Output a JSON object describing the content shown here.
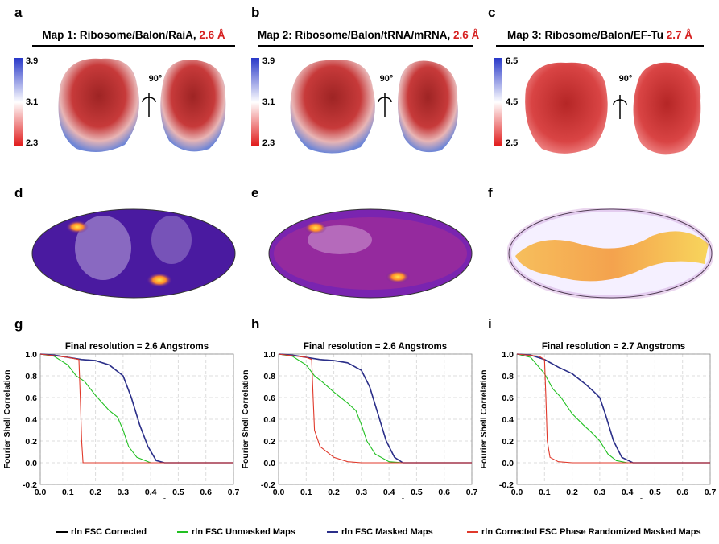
{
  "panel_labels": [
    "a",
    "b",
    "c",
    "d",
    "e",
    "f",
    "g",
    "h",
    "i"
  ],
  "maps": [
    {
      "title": "Map 1: Ribosome/Balon/RaiA, ",
      "res": "2.6 Å",
      "cbar": [
        "3.9",
        "3.1",
        "2.3"
      ],
      "rotation": "90°"
    },
    {
      "title": "Map 2: Ribosome/Balon/tRNA/mRNA, ",
      "res": "2.6 Å",
      "cbar": [
        "3.9",
        "3.1",
        "2.3"
      ],
      "rotation": "90°"
    },
    {
      "title": "Map 3: Ribosome/Balon/EF-Tu ",
      "res": "2.7 Å",
      "cbar": [
        "6.5",
        "4.5",
        "2.5"
      ],
      "rotation": "90°"
    }
  ],
  "colors": {
    "corrected": "#000000",
    "unmasked": "#22c022",
    "masked": "#2b2f8a",
    "phase": "#e0392b",
    "accent": "#d62020"
  },
  "chart_data": [
    {
      "type": "line",
      "title": "Final resolution = 2.6 Angstroms",
      "xlabel": "Resolution (1/Å)",
      "ylabel": "Fourier Shell Correlation",
      "xlim": [
        0,
        0.7
      ],
      "ylim": [
        -0.2,
        1.0
      ],
      "xticks": [
        "0.0",
        "0.1",
        "0.2",
        "0.3",
        "0.4",
        "0.5",
        "0.6",
        "0.7"
      ],
      "yticks": [
        "-0.2",
        "0.0",
        "0.2",
        "0.4",
        "0.6",
        "0.8",
        "1.0"
      ],
      "series": [
        {
          "name": "rln FSC Corrected",
          "x": [
            0,
            0.05,
            0.1,
            0.15,
            0.2,
            0.25,
            0.3,
            0.33,
            0.36,
            0.39,
            0.42,
            0.45,
            0.5,
            0.6,
            0.7
          ],
          "y": [
            1,
            0.99,
            0.97,
            0.95,
            0.94,
            0.9,
            0.8,
            0.6,
            0.35,
            0.15,
            0.02,
            0,
            0,
            0,
            0
          ]
        },
        {
          "name": "rln FSC Unmasked Maps",
          "x": [
            0,
            0.05,
            0.1,
            0.13,
            0.16,
            0.2,
            0.25,
            0.28,
            0.3,
            0.32,
            0.35,
            0.4,
            0.45,
            0.5,
            0.6,
            0.7
          ],
          "y": [
            1,
            0.98,
            0.9,
            0.8,
            0.75,
            0.62,
            0.48,
            0.42,
            0.3,
            0.15,
            0.05,
            0,
            0,
            0,
            0,
            0
          ]
        },
        {
          "name": "rln FSC Masked Maps",
          "x": [
            0,
            0.05,
            0.1,
            0.15,
            0.2,
            0.25,
            0.3,
            0.33,
            0.36,
            0.39,
            0.42,
            0.45,
            0.5,
            0.6,
            0.7
          ],
          "y": [
            1,
            0.99,
            0.97,
            0.95,
            0.94,
            0.9,
            0.8,
            0.6,
            0.35,
            0.15,
            0.02,
            0,
            0,
            0,
            0
          ]
        },
        {
          "name": "rln Corrected FSC Phase Randomized Masked Maps",
          "x": [
            0,
            0.1,
            0.14,
            0.145,
            0.15,
            0.155,
            0.2,
            0.3,
            0.4,
            0.5,
            0.6,
            0.7
          ],
          "y": [
            1,
            0.97,
            0.95,
            0.6,
            0.2,
            0.0,
            0,
            0,
            0,
            0,
            0,
            0
          ]
        }
      ]
    },
    {
      "type": "line",
      "title": "Final resolution = 2.6 Angstroms",
      "xlabel": "Resolution (1/Å)",
      "ylabel": "Fourier Shell Correlation",
      "xlim": [
        0,
        0.7
      ],
      "ylim": [
        -0.2,
        1.0
      ],
      "xticks": [
        "0.0",
        "0.1",
        "0.2",
        "0.3",
        "0.4",
        "0.5",
        "0.6",
        "0.7"
      ],
      "yticks": [
        "-0.2",
        "0.0",
        "0.2",
        "0.4",
        "0.6",
        "0.8",
        "1.0"
      ],
      "series": [
        {
          "name": "rln FSC Corrected",
          "x": [
            0,
            0.05,
            0.1,
            0.15,
            0.2,
            0.25,
            0.3,
            0.33,
            0.36,
            0.39,
            0.42,
            0.45,
            0.5,
            0.6,
            0.7
          ],
          "y": [
            1,
            0.99,
            0.97,
            0.95,
            0.94,
            0.92,
            0.85,
            0.7,
            0.45,
            0.2,
            0.05,
            0,
            0,
            0,
            0
          ]
        },
        {
          "name": "rln FSC Unmasked Maps",
          "x": [
            0,
            0.05,
            0.1,
            0.13,
            0.16,
            0.2,
            0.25,
            0.28,
            0.3,
            0.32,
            0.35,
            0.4,
            0.45,
            0.5,
            0.6,
            0.7
          ],
          "y": [
            1,
            0.98,
            0.9,
            0.8,
            0.74,
            0.65,
            0.55,
            0.48,
            0.35,
            0.2,
            0.08,
            0.01,
            0,
            0,
            0,
            0
          ]
        },
        {
          "name": "rln FSC Masked Maps",
          "x": [
            0,
            0.05,
            0.1,
            0.15,
            0.2,
            0.25,
            0.3,
            0.33,
            0.36,
            0.39,
            0.42,
            0.45,
            0.5,
            0.6,
            0.7
          ],
          "y": [
            1,
            0.99,
            0.97,
            0.95,
            0.94,
            0.92,
            0.85,
            0.7,
            0.45,
            0.2,
            0.05,
            0,
            0,
            0,
            0
          ]
        },
        {
          "name": "rln Corrected FSC Phase Randomized Masked Maps",
          "x": [
            0,
            0.1,
            0.12,
            0.125,
            0.13,
            0.15,
            0.2,
            0.25,
            0.3,
            0.4,
            0.5,
            0.6,
            0.7
          ],
          "y": [
            1,
            0.97,
            0.95,
            0.6,
            0.3,
            0.15,
            0.05,
            0.01,
            0,
            0,
            0,
            0,
            0
          ]
        }
      ]
    },
    {
      "type": "line",
      "title": "Final resolution = 2.7 Angstroms",
      "xlabel": "Resolution (1/Å)",
      "ylabel": "Fourier Shell Correlation",
      "xlim": [
        0,
        0.7
      ],
      "ylim": [
        -0.2,
        1.0
      ],
      "xticks": [
        "0.0",
        "0.1",
        "0.2",
        "0.3",
        "0.4",
        "0.5",
        "0.6",
        "0.7"
      ],
      "yticks": [
        "-0.2",
        "0.0",
        "0.2",
        "0.4",
        "0.6",
        "0.8",
        "1.0"
      ],
      "series": [
        {
          "name": "rln FSC Corrected",
          "x": [
            0,
            0.05,
            0.1,
            0.15,
            0.2,
            0.25,
            0.28,
            0.3,
            0.32,
            0.35,
            0.38,
            0.42,
            0.45,
            0.5,
            0.6,
            0.7
          ],
          "y": [
            1,
            0.99,
            0.95,
            0.88,
            0.82,
            0.72,
            0.65,
            0.6,
            0.45,
            0.2,
            0.05,
            0,
            0,
            0,
            0,
            0
          ]
        },
        {
          "name": "rln FSC Unmasked Maps",
          "x": [
            0,
            0.05,
            0.1,
            0.13,
            0.16,
            0.2,
            0.24,
            0.27,
            0.3,
            0.33,
            0.36,
            0.4,
            0.45,
            0.5,
            0.6,
            0.7
          ],
          "y": [
            1,
            0.97,
            0.82,
            0.68,
            0.6,
            0.45,
            0.35,
            0.28,
            0.2,
            0.08,
            0.02,
            0,
            0,
            0,
            0,
            0
          ]
        },
        {
          "name": "rln FSC Masked Maps",
          "x": [
            0,
            0.05,
            0.1,
            0.15,
            0.2,
            0.25,
            0.28,
            0.3,
            0.32,
            0.35,
            0.38,
            0.42,
            0.45,
            0.5,
            0.6,
            0.7
          ],
          "y": [
            1,
            0.99,
            0.95,
            0.88,
            0.82,
            0.72,
            0.65,
            0.6,
            0.45,
            0.2,
            0.05,
            0,
            0,
            0,
            0,
            0
          ]
        },
        {
          "name": "rln Corrected FSC Phase Randomized Masked Maps",
          "x": [
            0,
            0.08,
            0.1,
            0.105,
            0.11,
            0.12,
            0.15,
            0.2,
            0.3,
            0.4,
            0.5,
            0.6,
            0.7
          ],
          "y": [
            1,
            0.98,
            0.95,
            0.6,
            0.2,
            0.05,
            0.01,
            0,
            0,
            0,
            0,
            0,
            0
          ]
        }
      ]
    }
  ],
  "legend": [
    {
      "label": "rln FSC Corrected",
      "color": "#000000"
    },
    {
      "label": "rln FSC Unmasked Maps",
      "color": "#22c022"
    },
    {
      "label": "rln FSC Masked Maps",
      "color": "#2b2f8a"
    },
    {
      "label": "rln Corrected FSC Phase Randomized Masked Maps",
      "color": "#e0392b"
    }
  ]
}
